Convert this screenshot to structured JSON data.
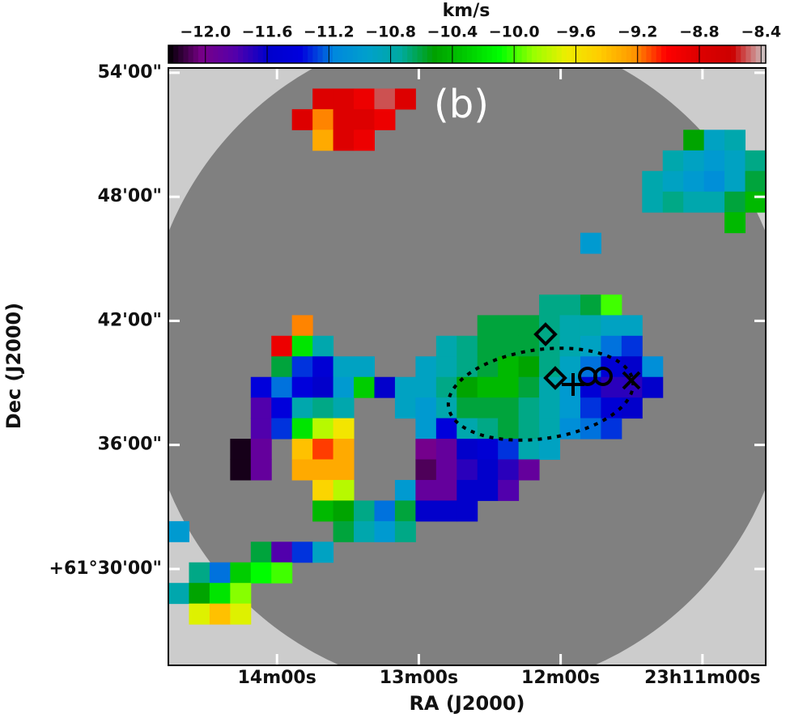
{
  "chart_data": {
    "type": "image",
    "colorbar_label": "km/s",
    "panel_label": "(b)",
    "x_label": "RA (J2000)",
    "y_label": "Dec (J2000)",
    "xlim": [
      14.766,
      10.554
    ],
    "ylim": [
      25.34,
      54.23
    ],
    "xticks": [
      {
        "value": 14,
        "label": "14m00s"
      },
      {
        "value": 13,
        "label": "13m00s"
      },
      {
        "value": 12,
        "label": "12m00s"
      },
      {
        "value": 11,
        "label": "23h11m00s"
      }
    ],
    "yticks": [
      {
        "value": 54,
        "label": "54'00\""
      },
      {
        "value": 48,
        "label": "48'00\""
      },
      {
        "value": 42,
        "label": "42'00\""
      },
      {
        "value": 36,
        "label": "36'00\""
      },
      {
        "value": 30,
        "label": "+61°30'00\""
      }
    ],
    "clim": [
      -12.24,
      -8.37
    ],
    "cticks": [
      {
        "value": -12.0,
        "label": "−12.0"
      },
      {
        "value": -11.6,
        "label": "−11.6"
      },
      {
        "value": -11.2,
        "label": "−11.2"
      },
      {
        "value": -10.8,
        "label": "−10.8"
      },
      {
        "value": -10.4,
        "label": "−10.4"
      },
      {
        "value": -10.0,
        "label": "−10.0"
      },
      {
        "value": -9.6,
        "label": "−9.6"
      },
      {
        "value": -9.2,
        "label": "−9.2"
      },
      {
        "value": -8.8,
        "label": "−8.8"
      },
      {
        "value": -8.4,
        "label": "−8.4"
      }
    ],
    "colormap": [
      "#000000",
      "#780088",
      "#5500aa",
      "#0000cc",
      "#0000dd",
      "#0088dd",
      "#00a0cc",
      "#00aaa0",
      "#00a000",
      "#00cc00",
      "#00ff00",
      "#99ff00",
      "#eeee00",
      "#ffcc00",
      "#ff9900",
      "#ff0000",
      "#dd0000",
      "#cc0000",
      "#cccccc"
    ],
    "map": {
      "values": [
        [
          null,
          null,
          null,
          null,
          null,
          null,
          null,
          null,
          null,
          null,
          null,
          null,
          null,
          null,
          null,
          null,
          null,
          null,
          null,
          null,
          null,
          null,
          null,
          null,
          null,
          null,
          null,
          null,
          null
        ],
        [
          null,
          null,
          null,
          null,
          null,
          null,
          null,
          -8.8,
          -8.8,
          -8.9,
          -8.5,
          -8.8,
          null,
          null,
          null,
          null,
          null,
          null,
          null,
          null,
          null,
          null,
          null,
          null,
          null,
          null,
          null,
          null,
          null
        ],
        [
          null,
          null,
          null,
          null,
          null,
          null,
          -8.8,
          -9.2,
          -8.8,
          -8.8,
          -8.9,
          null,
          null,
          null,
          null,
          null,
          null,
          null,
          null,
          null,
          null,
          null,
          null,
          null,
          null,
          null,
          null,
          null,
          null
        ],
        [
          null,
          null,
          null,
          null,
          null,
          null,
          null,
          -9.3,
          -8.8,
          -8.9,
          null,
          null,
          null,
          null,
          null,
          null,
          null,
          null,
          null,
          null,
          null,
          null,
          null,
          null,
          null,
          -10.5,
          -10.9,
          -10.8,
          null
        ],
        [
          null,
          null,
          null,
          null,
          null,
          null,
          null,
          null,
          null,
          null,
          null,
          null,
          null,
          null,
          null,
          null,
          null,
          null,
          null,
          null,
          null,
          null,
          null,
          null,
          -10.8,
          -10.9,
          -11.0,
          -10.9,
          -10.7
        ],
        [
          null,
          null,
          null,
          null,
          null,
          null,
          null,
          null,
          null,
          null,
          null,
          null,
          null,
          null,
          null,
          null,
          null,
          null,
          null,
          null,
          null,
          null,
          null,
          -10.8,
          -10.9,
          -11.0,
          -11.1,
          -10.9,
          -10.6
        ],
        [
          null,
          null,
          null,
          null,
          null,
          null,
          null,
          null,
          null,
          null,
          null,
          null,
          null,
          null,
          null,
          null,
          null,
          null,
          null,
          null,
          null,
          null,
          null,
          -10.8,
          -10.7,
          -10.8,
          -10.8,
          -10.6,
          -10.4
        ],
        [
          null,
          null,
          null,
          null,
          null,
          null,
          null,
          null,
          null,
          null,
          null,
          null,
          null,
          null,
          null,
          null,
          null,
          null,
          null,
          null,
          null,
          null,
          null,
          null,
          null,
          null,
          null,
          -10.4,
          null
        ],
        [
          null,
          null,
          null,
          null,
          null,
          null,
          null,
          null,
          null,
          null,
          null,
          null,
          null,
          null,
          null,
          null,
          null,
          null,
          null,
          null,
          -11.0,
          null,
          null,
          null,
          null,
          null,
          null,
          null,
          null
        ],
        [
          null,
          null,
          null,
          null,
          null,
          null,
          null,
          null,
          null,
          null,
          null,
          null,
          null,
          null,
          null,
          null,
          null,
          null,
          null,
          null,
          null,
          null,
          null,
          null,
          null,
          null,
          null,
          null,
          null
        ],
        [
          null,
          null,
          null,
          null,
          null,
          null,
          null,
          null,
          null,
          null,
          null,
          null,
          null,
          null,
          null,
          null,
          null,
          null,
          null,
          null,
          null,
          null,
          null,
          null,
          null,
          null,
          null,
          null,
          null
        ],
        [
          null,
          null,
          null,
          null,
          null,
          null,
          null,
          null,
          null,
          null,
          null,
          null,
          null,
          null,
          null,
          null,
          null,
          null,
          -10.7,
          -10.7,
          -10.6,
          -10.0,
          null,
          null,
          null,
          null,
          null,
          null,
          null
        ],
        [
          null,
          null,
          null,
          null,
          null,
          null,
          -9.2,
          null,
          null,
          null,
          null,
          null,
          null,
          null,
          null,
          -10.6,
          -10.6,
          -10.6,
          -10.7,
          -10.8,
          -10.8,
          -10.9,
          -10.9,
          null,
          null,
          null,
          null,
          null,
          null
        ],
        [
          null,
          null,
          null,
          null,
          null,
          -8.9,
          -10.2,
          -10.8,
          null,
          null,
          null,
          null,
          null,
          -10.8,
          -10.7,
          -10.6,
          -10.6,
          -10.6,
          -10.7,
          -10.8,
          -10.9,
          -11.2,
          -11.3,
          null,
          null,
          null,
          null,
          null,
          null
        ],
        [
          null,
          null,
          null,
          null,
          null,
          -10.6,
          -11.3,
          -11.5,
          -10.9,
          -10.9,
          null,
          null,
          -10.9,
          -10.8,
          -10.7,
          -10.6,
          -10.4,
          -10.5,
          -10.7,
          -10.9,
          -11.2,
          -11.5,
          -11.6,
          -11.1,
          null,
          null,
          null,
          null,
          null
        ],
        [
          null,
          null,
          null,
          null,
          -11.4,
          -11.2,
          -11.4,
          -11.6,
          -11.0,
          -10.3,
          -11.6,
          -10.9,
          -10.9,
          -10.7,
          -10.5,
          -10.4,
          -10.4,
          -10.6,
          -10.8,
          -11.0,
          -11.5,
          -11.7,
          -11.7,
          -11.6,
          null,
          null,
          null,
          null,
          null
        ],
        [
          null,
          null,
          null,
          null,
          -11.8,
          -11.4,
          -10.8,
          -10.7,
          -10.8,
          null,
          null,
          -10.9,
          -11.0,
          -10.8,
          -10.6,
          -10.6,
          -10.6,
          -10.7,
          -10.8,
          -11.0,
          -11.3,
          -11.5,
          -11.6,
          null,
          null,
          null,
          null,
          null,
          null
        ],
        [
          null,
          null,
          null,
          null,
          -11.8,
          -11.3,
          -10.2,
          -9.8,
          -9.6,
          null,
          null,
          null,
          -11.0,
          -11.4,
          -10.8,
          -10.7,
          -10.6,
          -10.7,
          -10.8,
          -11.1,
          -11.2,
          -11.3,
          null,
          null,
          null,
          null,
          null,
          null,
          null
        ],
        [
          null,
          null,
          null,
          -12.2,
          -11.9,
          null,
          -9.4,
          -9.1,
          -9.3,
          null,
          null,
          null,
          -12.0,
          -11.9,
          -11.6,
          -11.5,
          -11.3,
          -10.8,
          -10.9,
          null,
          null,
          null,
          null,
          null,
          null,
          null,
          null,
          null,
          null
        ],
        [
          null,
          null,
          null,
          -12.2,
          -11.9,
          null,
          -9.3,
          -9.3,
          -9.3,
          null,
          null,
          null,
          -12.1,
          -11.9,
          -11.7,
          -11.6,
          -11.7,
          -11.9,
          null,
          null,
          null,
          null,
          null,
          null,
          null,
          null,
          null,
          null,
          null
        ],
        [
          null,
          null,
          null,
          null,
          null,
          null,
          null,
          -9.5,
          -9.8,
          null,
          null,
          -11.0,
          -11.9,
          -11.9,
          -11.6,
          -11.6,
          -11.8,
          null,
          null,
          null,
          null,
          null,
          null,
          null,
          null,
          null,
          null,
          null,
          null
        ],
        [
          null,
          null,
          null,
          null,
          null,
          null,
          null,
          -10.4,
          -10.5,
          -10.7,
          -11.2,
          -10.6,
          -11.6,
          -11.6,
          -11.6,
          null,
          null,
          null,
          null,
          null,
          null,
          null,
          null,
          null,
          null,
          null,
          null,
          null,
          null
        ],
        [
          -11.0,
          null,
          null,
          null,
          null,
          null,
          null,
          null,
          -10.6,
          -10.8,
          -11.0,
          -10.7,
          null,
          null,
          null,
          null,
          null,
          null,
          null,
          null,
          null,
          null,
          null,
          null,
          null,
          null,
          null,
          null,
          null
        ],
        [
          null,
          null,
          null,
          null,
          -10.6,
          -11.8,
          -11.3,
          -10.9,
          null,
          null,
          null,
          null,
          null,
          null,
          null,
          null,
          null,
          null,
          null,
          null,
          null,
          null,
          null,
          null,
          null,
          null,
          null,
          null,
          null
        ],
        [
          null,
          -10.7,
          -11.2,
          -10.3,
          -10.1,
          -10.0,
          null,
          null,
          null,
          null,
          null,
          null,
          null,
          null,
          null,
          null,
          null,
          null,
          null,
          null,
          null,
          null,
          null,
          null,
          null,
          null,
          null,
          null,
          null
        ],
        [
          -10.8,
          -10.5,
          -10.2,
          -9.9,
          null,
          null,
          null,
          null,
          null,
          null,
          null,
          null,
          null,
          null,
          null,
          null,
          null,
          null,
          null,
          null,
          null,
          null,
          null,
          null,
          null,
          null,
          null,
          null,
          null
        ],
        [
          null,
          -9.7,
          -9.4,
          -9.7,
          null,
          null,
          null,
          null,
          null,
          null,
          null,
          null,
          null,
          null,
          null,
          null,
          null,
          null,
          null,
          null,
          null,
          null,
          null,
          null,
          null,
          null,
          null,
          null,
          null
        ],
        [
          null,
          null,
          null,
          null,
          null,
          null,
          null,
          null,
          null,
          null,
          null,
          null,
          null,
          null,
          null,
          null,
          null,
          null,
          null,
          null,
          null,
          null,
          null,
          null,
          null,
          null,
          null,
          null,
          null
        ],
        [
          null,
          null,
          null,
          null,
          null,
          null,
          null,
          null,
          null,
          null,
          null,
          null,
          null,
          null,
          null,
          null,
          null,
          null,
          null,
          null,
          null,
          null,
          null,
          null,
          null,
          null,
          null,
          null,
          null
        ]
      ]
    }
  }
}
